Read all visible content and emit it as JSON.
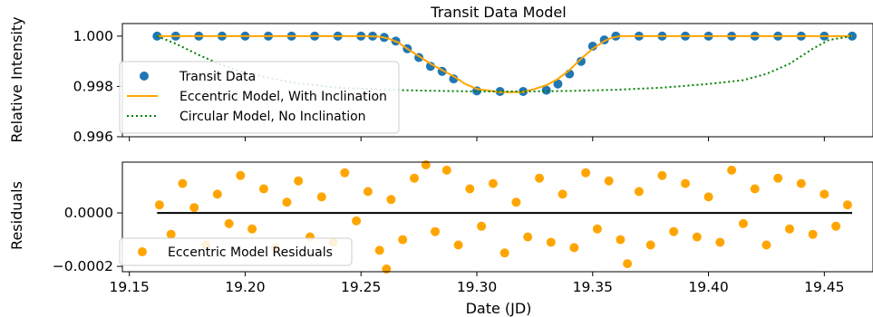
{
  "chart_data": [
    {
      "type": "scatter",
      "title": "Transit Data Model",
      "xlabel": "",
      "ylabel": "Relative Intensity",
      "xlim": [
        19.147,
        19.471
      ],
      "ylim": [
        0.996,
        1.0005
      ],
      "y_ticks": [
        1.0,
        0.998,
        0.996
      ],
      "y_tick_labels": [
        "1.000",
        "0.998",
        "0.996"
      ],
      "legend": "middle-left",
      "series": [
        {
          "name": "Transit Data",
          "kind": "scatter",
          "color": "#1f77b4",
          "x": [
            19.162,
            19.17,
            19.18,
            19.19,
            19.2,
            19.21,
            19.22,
            19.23,
            19.24,
            19.25,
            19.255,
            19.26,
            19.265,
            19.27,
            19.275,
            19.28,
            19.285,
            19.29,
            19.3,
            19.31,
            19.32,
            19.33,
            19.335,
            19.34,
            19.345,
            19.35,
            19.355,
            19.36,
            19.37,
            19.38,
            19.39,
            19.4,
            19.41,
            19.42,
            19.43,
            19.44,
            19.45,
            19.462
          ],
          "y": [
            1.0,
            1.0,
            1.0,
            1.0,
            1.0,
            1.0,
            1.0,
            1.0,
            1.0,
            1.0,
            1.0,
            0.99995,
            0.9998,
            0.9995,
            0.99915,
            0.9988,
            0.9986,
            0.9983,
            0.99782,
            0.9978,
            0.9978,
            0.99785,
            0.9981,
            0.9985,
            0.999,
            0.9996,
            0.99985,
            1.0,
            1.0,
            1.0,
            1.0,
            1.0,
            1.0,
            1.0,
            1.0,
            1.0,
            1.0,
            1.0
          ]
        },
        {
          "name": "Eccentric Model, With Inclination",
          "kind": "line",
          "color": "#ffa500",
          "x": [
            19.162,
            19.25,
            19.258,
            19.262,
            19.266,
            19.27,
            19.275,
            19.28,
            19.285,
            19.29,
            19.295,
            19.3,
            19.31,
            19.32,
            19.325,
            19.33,
            19.335,
            19.34,
            19.345,
            19.35,
            19.355,
            19.358,
            19.362,
            19.37,
            19.462
          ],
          "y": [
            1.0,
            1.0,
            0.99998,
            0.9999,
            0.99975,
            0.9995,
            0.9992,
            0.9989,
            0.99865,
            0.9984,
            0.9981,
            0.9979,
            0.99777,
            0.99778,
            0.9979,
            0.99805,
            0.9983,
            0.99865,
            0.9991,
            0.9995,
            0.9998,
            0.99993,
            1.0,
            1.0,
            1.0
          ]
        },
        {
          "name": "Circular Model, No Inclination",
          "kind": "dotted-line",
          "color": "#008000",
          "x": [
            19.162,
            19.17,
            19.18,
            19.19,
            19.2,
            19.21,
            19.22,
            19.24,
            19.26,
            19.28,
            19.3,
            19.32,
            19.34,
            19.36,
            19.38,
            19.4,
            19.415,
            19.425,
            19.435,
            19.445,
            19.452,
            19.462
          ],
          "y": [
            1.0,
            0.9997,
            0.99925,
            0.99885,
            0.99855,
            0.99835,
            0.99815,
            0.99795,
            0.99787,
            0.99783,
            0.9978,
            0.9978,
            0.99782,
            0.99787,
            0.99795,
            0.9981,
            0.99825,
            0.9985,
            0.9989,
            0.9995,
            0.99985,
            1.0
          ]
        }
      ]
    },
    {
      "type": "scatter",
      "title": "",
      "xlabel": "Date (JD)",
      "ylabel": "Residuals",
      "xlim": [
        19.147,
        19.471
      ],
      "ylim": [
        -0.00022,
        0.00019
      ],
      "x_ticks": [
        19.15,
        19.2,
        19.25,
        19.3,
        19.35,
        19.4,
        19.45
      ],
      "x_tick_labels": [
        "19.15",
        "19.20",
        "19.25",
        "19.30",
        "19.35",
        "19.40",
        "19.45"
      ],
      "y_ticks": [
        0.0,
        -0.0002
      ],
      "y_tick_labels": [
        "0.0000",
        "−0.0002"
      ],
      "legend": "bottom-left",
      "series": [
        {
          "name": "Eccentric Model Residuals",
          "kind": "scatter",
          "color": "#ffa500",
          "x": [
            19.163,
            19.168,
            19.173,
            19.178,
            19.183,
            19.188,
            19.193,
            19.198,
            19.203,
            19.208,
            19.213,
            19.218,
            19.223,
            19.228,
            19.233,
            19.238,
            19.243,
            19.248,
            19.253,
            19.258,
            19.261,
            19.263,
            19.268,
            19.273,
            19.278,
            19.282,
            19.287,
            19.292,
            19.297,
            19.302,
            19.307,
            19.312,
            19.317,
            19.322,
            19.327,
            19.332,
            19.337,
            19.342,
            19.347,
            19.352,
            19.357,
            19.362,
            19.365,
            19.37,
            19.375,
            19.38,
            19.385,
            19.39,
            19.395,
            19.4,
            19.405,
            19.41,
            19.415,
            19.42,
            19.425,
            19.43,
            19.435,
            19.44,
            19.445,
            19.45,
            19.455,
            19.46
          ],
          "y": [
            3e-05,
            -8e-05,
            0.00011,
            2e-05,
            -0.00012,
            7e-05,
            -4e-05,
            0.00014,
            -6e-05,
            9e-05,
            -0.00013,
            4e-05,
            0.00012,
            -9e-05,
            6e-05,
            -0.00011,
            0.00015,
            -3e-05,
            8e-05,
            -0.00014,
            -0.00021,
            5e-05,
            -0.0001,
            0.00013,
            0.00018,
            -7e-05,
            0.00016,
            -0.00012,
            9e-05,
            -5e-05,
            0.00011,
            -0.00015,
            4e-05,
            -9e-05,
            0.00013,
            -0.00011,
            7e-05,
            -0.00013,
            0.00015,
            -6e-05,
            0.00012,
            -0.0001,
            -0.00019,
            8e-05,
            -0.00012,
            0.00014,
            -7e-05,
            0.00011,
            -9e-05,
            6e-05,
            -0.00011,
            0.00016,
            -4e-05,
            9e-05,
            -0.00012,
            0.00013,
            -6e-05,
            0.00011,
            -8e-05,
            7e-05,
            -5e-05,
            3e-05
          ]
        },
        {
          "name": "",
          "kind": "line",
          "color": "#000000",
          "x": [
            19.162,
            19.462
          ],
          "y": [
            0.0,
            0.0
          ]
        }
      ]
    }
  ]
}
